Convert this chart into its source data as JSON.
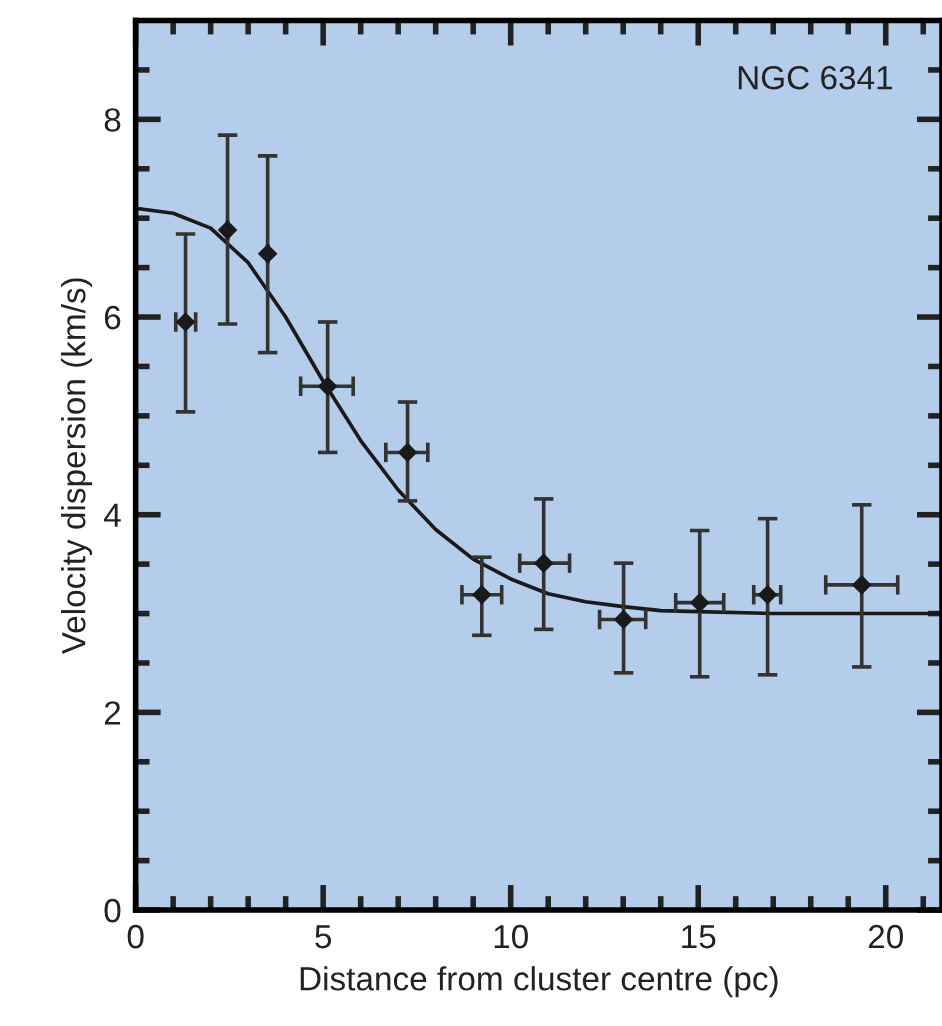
{
  "chart_data": {
    "type": "scatter",
    "xlabel": "Distance from cluster centre (pc)",
    "ylabel": "Velocity dispersion (km/s)",
    "annotations": [
      "NGC 6341"
    ],
    "xlim": [
      0,
      21.5
    ],
    "ylim": [
      0,
      9
    ],
    "xticks": [
      0,
      {
        "value": 1,
        "label": null
      },
      {
        "value": 2,
        "label": null
      },
      {
        "value": 3,
        "label": null
      },
      {
        "value": 4,
        "label": null
      },
      5,
      {
        "value": 6,
        "label": null
      },
      {
        "value": 7,
        "label": null
      },
      {
        "value": 8,
        "label": null
      },
      {
        "value": 9,
        "label": null
      },
      10,
      {
        "value": 11,
        "label": null
      },
      {
        "value": 12,
        "label": null
      },
      {
        "value": 13,
        "label": null
      },
      {
        "value": 14,
        "label": null
      },
      15,
      {
        "value": 16,
        "label": null
      },
      {
        "value": 17,
        "label": null
      },
      {
        "value": 18,
        "label": null
      },
      {
        "value": 19,
        "label": null
      },
      20,
      {
        "value": 21,
        "label": null
      }
    ],
    "yticks": [
      0,
      {
        "value": 0.5,
        "label": null
      },
      {
        "value": 1,
        "label": null
      },
      {
        "value": 1.5,
        "label": null
      },
      2,
      {
        "value": 2.5,
        "label": null
      },
      {
        "value": 3,
        "label": null
      },
      {
        "value": 3.5,
        "label": null
      },
      4,
      {
        "value": 4.5,
        "label": null
      },
      {
        "value": 5,
        "label": null
      },
      {
        "value": 5.5,
        "label": null
      },
      6,
      {
        "value": 6.5,
        "label": null
      },
      {
        "value": 7,
        "label": null
      },
      {
        "value": 7.5,
        "label": null
      },
      8,
      {
        "value": 8.5,
        "label": null
      }
    ],
    "grid": false,
    "marker": "diamond",
    "series": [
      {
        "color": "#1a1a1a",
        "x": [
          1.33,
          2.45,
          3.52,
          5.12,
          7.25,
          9.23,
          10.88,
          13.01,
          15.04,
          16.85,
          19.36
        ],
        "values": [
          5.95,
          6.88,
          6.64,
          5.3,
          4.63,
          3.19,
          3.51,
          2.94,
          3.11,
          3.19,
          3.29
        ],
        "errors": [
          [
            5.04,
            6.84
          ],
          [
            5.93,
            7.84
          ],
          [
            5.64,
            7.63
          ],
          [
            4.63,
            5.95
          ],
          [
            4.14,
            5.14
          ],
          [
            2.78,
            3.57
          ],
          [
            2.84,
            4.16
          ],
          [
            2.4,
            3.51
          ],
          [
            2.36,
            3.84
          ],
          [
            2.38,
            3.96
          ],
          [
            2.46,
            4.1
          ]
        ],
        "xerrors": [
          [
            1.07,
            1.6
          ],
          null,
          null,
          [
            4.4,
            5.8
          ],
          [
            6.67,
            7.79
          ],
          [
            8.7,
            9.76
          ],
          [
            10.24,
            11.57
          ],
          [
            12.37,
            13.6
          ],
          [
            14.4,
            15.68
          ],
          [
            16.48,
            17.2
          ],
          [
            18.4,
            20.32
          ]
        ]
      },
      {
        "type": "line",
        "color": "#1a1a1a",
        "marker": "none",
        "line_style": "solid",
        "x": [
          0,
          1,
          2,
          3,
          4,
          5,
          6,
          7,
          8,
          9,
          10,
          11,
          12,
          13,
          14,
          15,
          17,
          19,
          21.5
        ],
        "values": [
          7.1,
          7.05,
          6.9,
          6.55,
          6.0,
          5.35,
          4.75,
          4.25,
          3.85,
          3.55,
          3.35,
          3.2,
          3.12,
          3.07,
          3.03,
          3.02,
          3.0,
          3.0,
          3.0
        ]
      }
    ]
  }
}
